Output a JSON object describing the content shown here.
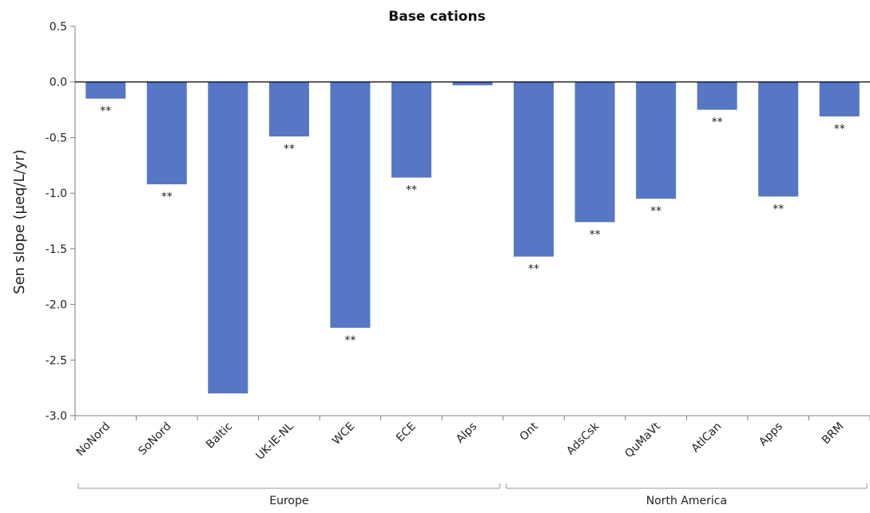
{
  "colors": {
    "bar": "#5577c6",
    "axis": "#7f7f7f",
    "zero_line": "#000000",
    "text": "#222222"
  },
  "chart_data": {
    "type": "bar",
    "title": "Base cations",
    "xlabel": "",
    "ylabel": "Sen slope (µeq/L/yr)",
    "ylim": [
      -3.0,
      0.5
    ],
    "yticks": [
      "0.5",
      "0.0",
      "-0.5",
      "-1.0",
      "-1.5",
      "-2.0",
      "-2.5",
      "-3.0"
    ],
    "categories": [
      "NoNord",
      "SoNord",
      "Baltic",
      "UK-IE-NL",
      "WCE",
      "ECE",
      "Alps",
      "Ont",
      "AdsCsk",
      "QuMaVt",
      "AtlCan",
      "Apps",
      "BRM"
    ],
    "values": [
      -0.15,
      -0.92,
      -2.8,
      -0.49,
      -2.21,
      -0.86,
      -0.03,
      -1.57,
      -1.26,
      -1.05,
      -0.25,
      -1.03,
      -0.31
    ],
    "significance": [
      "**",
      "**",
      "",
      "**",
      "**",
      "**",
      "",
      "**",
      "**",
      "**",
      "**",
      "**",
      "**"
    ],
    "groups": [
      {
        "name": "Europe",
        "start_index": 0,
        "end_index": 6
      },
      {
        "name": "North America",
        "start_index": 7,
        "end_index": 12
      }
    ],
    "grid": false,
    "legend": "none"
  }
}
